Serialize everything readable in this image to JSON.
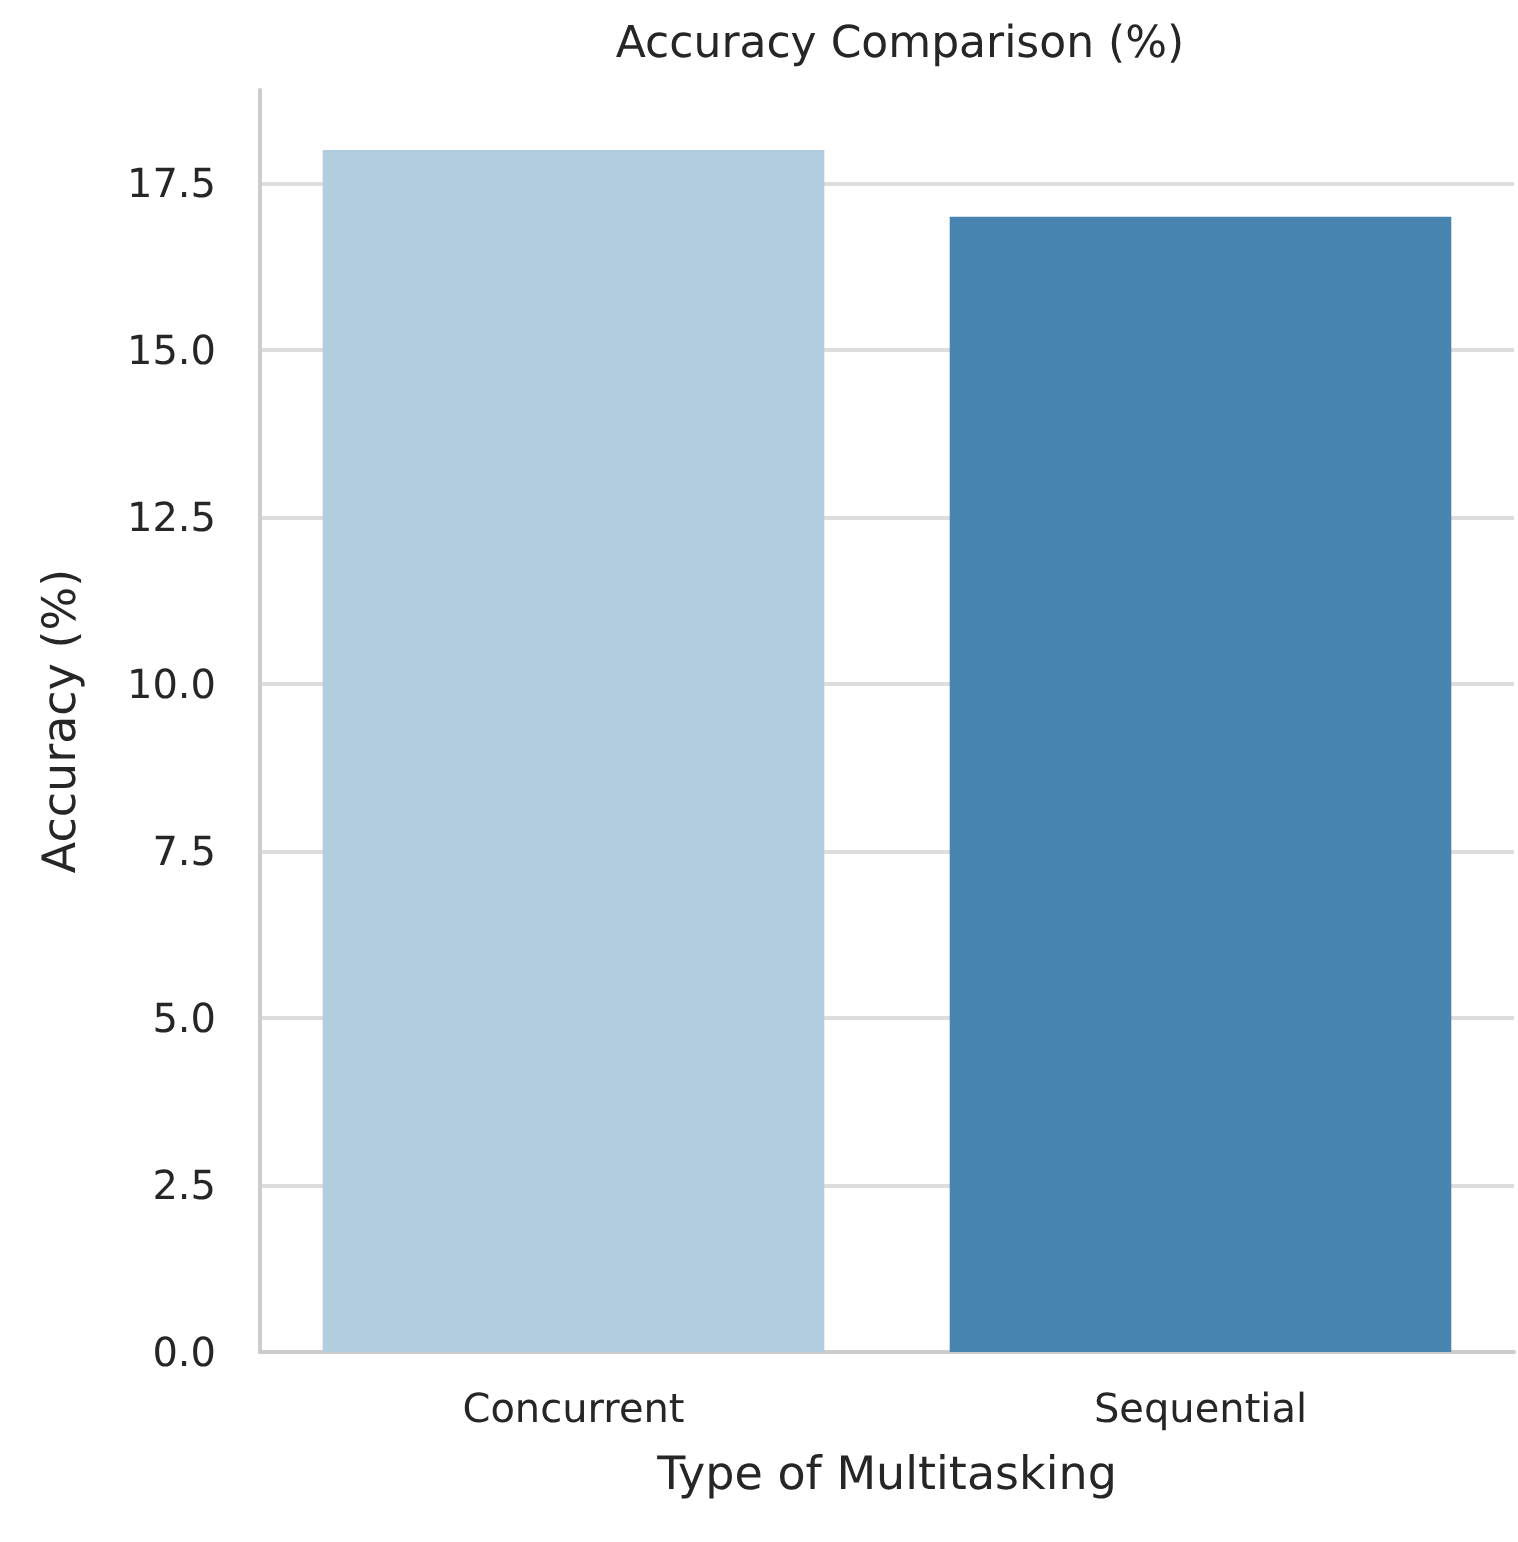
{
  "chart_data": {
    "type": "bar",
    "title": "Accuracy Comparison (%)",
    "xlabel": "Type of Multitasking",
    "ylabel": "Accuracy (%)",
    "categories": [
      "Concurrent",
      "Sequential"
    ],
    "values": [
      18,
      17
    ],
    "colors": [
      "#b3cde0",
      "#4884b0"
    ],
    "ylim": [
      0,
      18.9
    ],
    "yticks": [
      {
        "value": 0,
        "label": "0.0"
      },
      {
        "value": 2.5,
        "label": "2.5"
      },
      {
        "value": 5,
        "label": "5.0"
      },
      {
        "value": 7.5,
        "label": "7.5"
      },
      {
        "value": 10,
        "label": "10.0"
      },
      {
        "value": 12.5,
        "label": "12.5"
      },
      {
        "value": 15,
        "label": "15.0"
      },
      {
        "value": 17.5,
        "label": "17.5"
      }
    ],
    "grid": "y"
  }
}
